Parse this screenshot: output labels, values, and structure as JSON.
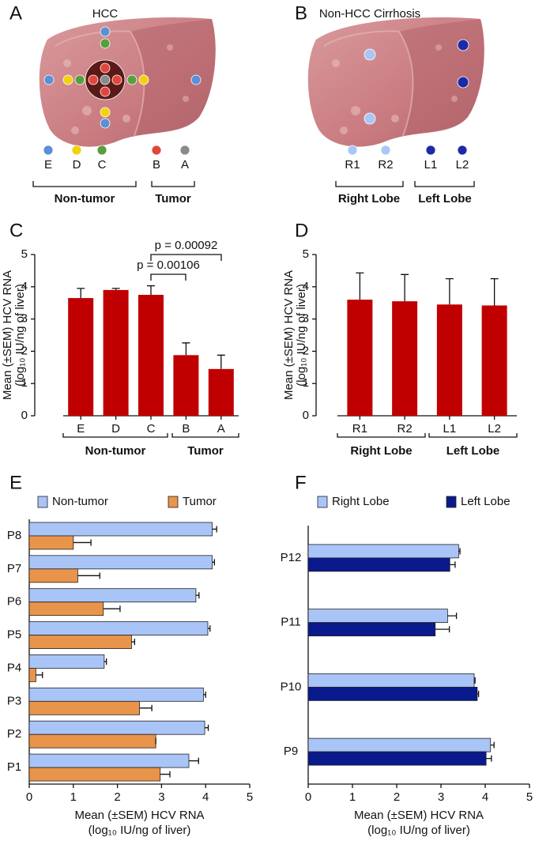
{
  "panel_labels": [
    "A",
    "B",
    "C",
    "D",
    "E",
    "F"
  ],
  "diagrams": [
    {
      "title": "HCC",
      "points": [
        {
          "label": "E",
          "color": "#5b8fd6"
        },
        {
          "label": "D",
          "color": "#f0d20f"
        },
        {
          "label": "C",
          "color": "#5a9e3c"
        },
        {
          "label": "B",
          "color": "#e0473a"
        },
        {
          "label": "A",
          "color": "#8a8a8a"
        }
      ],
      "groups": [
        "Non-tumor",
        "Tumor"
      ]
    },
    {
      "title": "Non-HCC Cirrhosis",
      "points": [
        {
          "label": "R1",
          "color": "#a9c6f7"
        },
        {
          "label": "R2",
          "color": "#a9c6f7"
        },
        {
          "label": "L1",
          "color": "#1c2aa8"
        },
        {
          "label": "L2",
          "color": "#1c2aa8"
        }
      ],
      "groups": [
        "Right Lobe",
        "Left Lobe"
      ]
    }
  ],
  "chart_data": [
    {
      "type": "bar",
      "ylabel": [
        "Mean (±SEM) HCV RNA",
        "(log₁₀ IU/ng of liver)"
      ],
      "categories": [
        "E",
        "D",
        "C",
        "B",
        "A"
      ],
      "values": [
        3.65,
        3.9,
        3.75,
        1.88,
        1.45
      ],
      "errors": [
        0.3,
        0.05,
        0.28,
        0.38,
        0.43
      ],
      "color": "#c00000",
      "ylim": [
        0,
        5
      ],
      "yticks": [
        0,
        1,
        2,
        3,
        4,
        5
      ],
      "groups": [
        "Non-tumor",
        "Tumor"
      ],
      "annotations": [
        "p = 0.00106",
        "p = 0.00092"
      ]
    },
    {
      "type": "bar",
      "ylabel": [
        "Mean (±SEM) HCV RNA",
        "(log₁₀ IU/ng of liver)"
      ],
      "categories": [
        "R1",
        "R2",
        "L1",
        "L2"
      ],
      "values": [
        3.6,
        3.55,
        3.45,
        3.42
      ],
      "errors": [
        0.83,
        0.83,
        0.8,
        0.83
      ],
      "color": "#c00000",
      "ylim": [
        0,
        5
      ],
      "yticks": [
        0,
        1,
        2,
        3,
        4,
        5
      ],
      "groups": [
        "Right Lobe",
        "Left Lobe"
      ],
      "annotations": []
    },
    {
      "type": "hbar",
      "xlabel": [
        "Mean (±SEM) HCV RNA",
        "(log₁₀ IU/ng of liver)"
      ],
      "categories": [
        "P8",
        "P7",
        "P6",
        "P5",
        "P4",
        "P3",
        "P2",
        "P1"
      ],
      "series": [
        {
          "name": "Non-tumor",
          "color": "#a9c4f7",
          "values": [
            4.15,
            4.15,
            3.78,
            4.05,
            1.7,
            3.95,
            3.98,
            3.62
          ],
          "errors": [
            0.1,
            0.05,
            0.07,
            0.05,
            0.05,
            0.05,
            0.08,
            0.22
          ]
        },
        {
          "name": "Tumor",
          "color": "#e8944a",
          "values": [
            1.0,
            1.1,
            1.68,
            2.32,
            0.15,
            2.5,
            2.87,
            2.97
          ],
          "errors": [
            0.4,
            0.5,
            0.38,
            0.07,
            0.15,
            0.28,
            0,
            0.22
          ]
        }
      ],
      "xlim": [
        0,
        5
      ],
      "xticks": [
        0,
        1,
        2,
        3,
        4,
        5
      ]
    },
    {
      "type": "hbar",
      "xlabel": [
        "Mean (±SEM) HCV RNA",
        "(log₁₀ IU/ng of liver)"
      ],
      "categories": [
        "P12",
        "P11",
        "P10",
        "P9"
      ],
      "series": [
        {
          "name": "Right Lobe",
          "color": "#a9c4f7",
          "values": [
            3.4,
            3.15,
            3.75,
            4.12
          ],
          "errors": [
            0.03,
            0.2,
            0.02,
            0.08
          ]
        },
        {
          "name": "Left Lobe",
          "color": "#0a1a8c",
          "values": [
            3.2,
            2.87,
            3.82,
            4.02
          ],
          "errors": [
            0.12,
            0.32,
            0.03,
            0.12
          ]
        }
      ],
      "xlim": [
        0,
        5
      ],
      "xticks": [
        0,
        1,
        2,
        3,
        4,
        5
      ]
    }
  ]
}
